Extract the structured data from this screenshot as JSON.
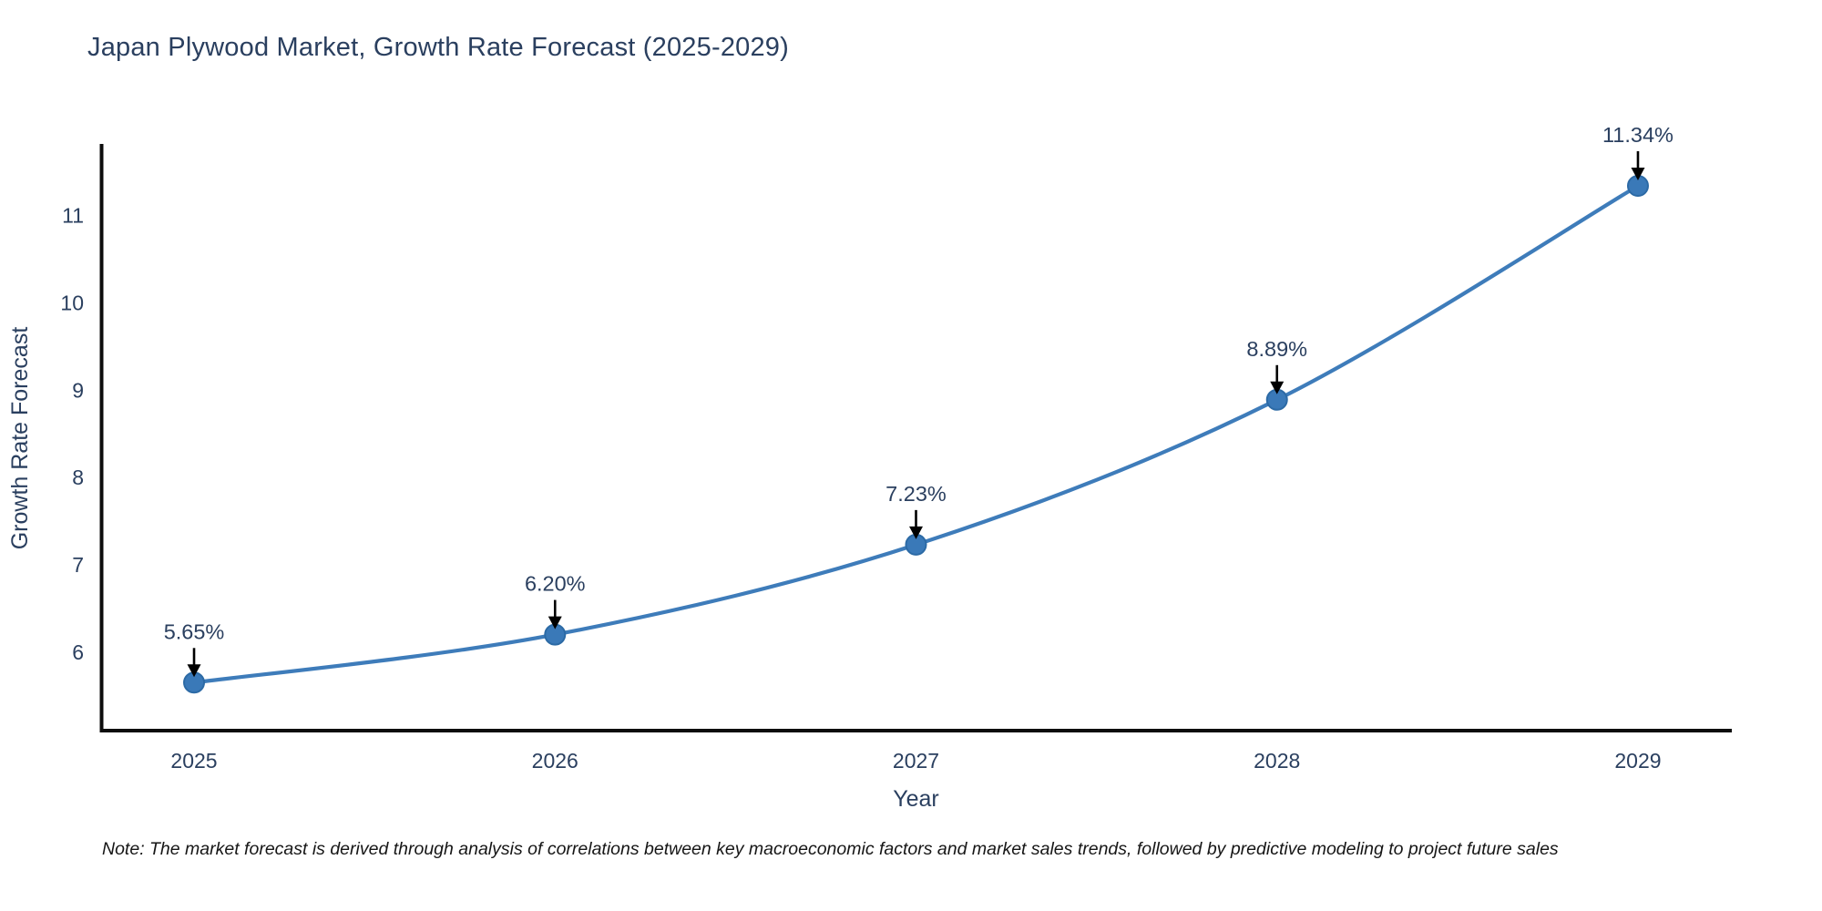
{
  "title": "Japan Plywood Market, Growth Rate Forecast (2025-2029)",
  "note": "Note: The market forecast is derived through analysis of correlations between key macroeconomic factors and market sales trends, followed by predictive modeling to project future sales",
  "chart_data": {
    "type": "line",
    "title": "Japan Plywood Market, Growth Rate Forecast (2025-2029)",
    "xlabel": "Year",
    "ylabel": "Growth Rate Forecast",
    "x": [
      2025,
      2026,
      2027,
      2028,
      2029
    ],
    "xticks": [
      "2025",
      "2026",
      "2027",
      "2028",
      "2029"
    ],
    "series": [
      {
        "name": "Growth Rate Forecast",
        "values": [
          5.65,
          6.2,
          7.23,
          8.89,
          11.34
        ]
      }
    ],
    "point_labels": [
      "5.65%",
      "6.20%",
      "7.23%",
      "8.89%",
      "11.34%"
    ],
    "yticks": [
      6,
      7,
      8,
      9,
      10,
      11
    ],
    "xlim": [
      2024.74,
      2029.26
    ],
    "ylim": [
      5.1,
      11.82
    ],
    "grid": false,
    "legend": false,
    "smooth": true,
    "colors": {
      "line": "#3e7cba",
      "marker_fill": "#3a79b8",
      "marker_edge": "#2c6aa5",
      "axis": "#0d0d0d",
      "text": "#2a3f5f",
      "annotation_arrow": "#000000"
    }
  }
}
